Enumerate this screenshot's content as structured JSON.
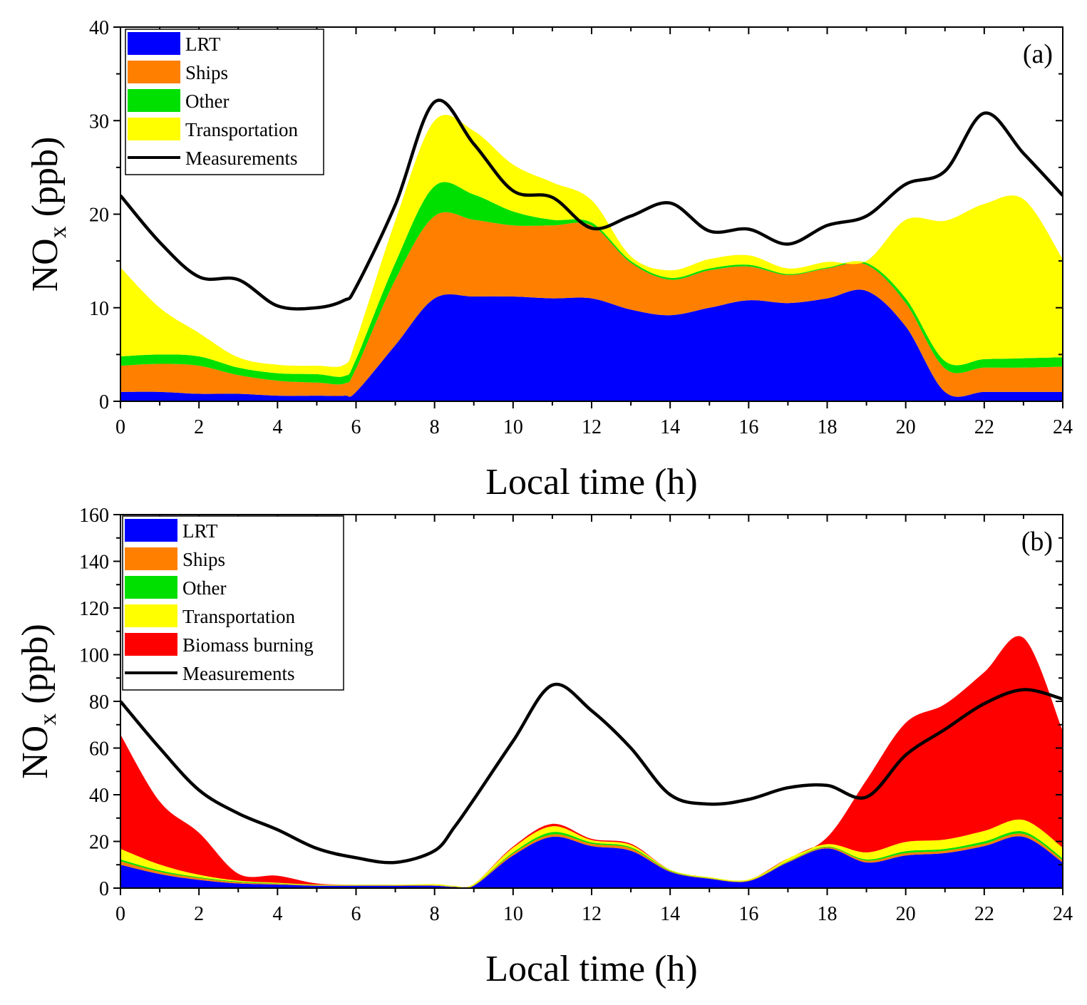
{
  "chart_data": [
    {
      "type": "area",
      "stacked": true,
      "panel_label": "(a)",
      "xlabel": "Local time (h)",
      "ylabel": "NO",
      "ylabel_sub": "x",
      "ylabel_unit": " (ppb)",
      "xlim": [
        0,
        24
      ],
      "ylim": [
        0,
        40
      ],
      "xticks": [
        0,
        2,
        4,
        6,
        8,
        10,
        12,
        14,
        16,
        18,
        20,
        22,
        24
      ],
      "yticks": [
        0,
        10,
        20,
        30,
        40
      ],
      "legend_position": "top-left",
      "x": [
        0,
        1,
        2,
        3,
        4,
        5,
        5.7,
        6,
        7,
        8,
        9,
        10,
        11,
        12,
        13,
        14,
        15,
        16,
        17,
        18,
        19,
        20,
        21,
        22,
        23,
        24
      ],
      "series": [
        {
          "name": "LRT",
          "color": "#0000ff",
          "values": [
            1,
            1,
            0.8,
            0.8,
            0.6,
            0.6,
            0.6,
            1,
            6,
            11,
            11.2,
            11.2,
            11,
            11,
            9.8,
            9.2,
            10,
            10.8,
            10.5,
            11,
            11.8,
            8,
            1,
            1,
            1,
            1
          ]
        },
        {
          "name": "Ships",
          "color": "#ff8000",
          "values": [
            2.8,
            3,
            3,
            2,
            1.6,
            1.4,
            1.3,
            2.5,
            7,
            8.8,
            8.2,
            7.6,
            7.8,
            7.8,
            5,
            3.8,
            4,
            3.6,
            3,
            3.2,
            2.8,
            2.5,
            2.5,
            2.6,
            2.6,
            2.7
          ]
        },
        {
          "name": "Other",
          "color": "#00e000",
          "values": [
            1,
            1,
            1,
            0.8,
            0.8,
            0.9,
            0.8,
            1,
            1.8,
            3.2,
            2.7,
            1.5,
            0.6,
            0.3,
            0.2,
            0.2,
            0.2,
            0.2,
            0.1,
            0.1,
            0.2,
            0.5,
            0.8,
            0.9,
            1,
            1
          ]
        },
        {
          "name": "Transportation",
          "color": "#ffff00",
          "values": [
            9.5,
            5,
            2.5,
            1.1,
            0.9,
            0.9,
            1.2,
            2,
            4.5,
            7,
            6.8,
            5,
            4,
            2.4,
            0.5,
            0.8,
            1,
            1,
            0.6,
            0.6,
            0.2,
            8.4,
            15,
            16.6,
            17,
            10.5
          ]
        }
      ],
      "measurements": {
        "name": "Measurements",
        "color": "#000000",
        "values": [
          22,
          17,
          13.3,
          13,
          10.2,
          10,
          10.8,
          12.2,
          21,
          32,
          27.5,
          22.5,
          21.8,
          18.5,
          19.8,
          21.2,
          18.2,
          18.4,
          16.8,
          18.8,
          19.8,
          23.2,
          24.6,
          30.8,
          26.5,
          22
        ]
      }
    },
    {
      "type": "area",
      "stacked": true,
      "panel_label": "(b)",
      "xlabel": "Local time (h)",
      "ylabel": "NO",
      "ylabel_sub": "x",
      "ylabel_unit": " (ppb)",
      "xlim": [
        0,
        24
      ],
      "ylim": [
        0,
        160
      ],
      "xticks": [
        0,
        2,
        4,
        6,
        8,
        10,
        12,
        14,
        16,
        18,
        20,
        22,
        24
      ],
      "yticks": [
        0,
        20,
        40,
        60,
        80,
        100,
        120,
        140,
        160
      ],
      "legend_position": "top-left",
      "x": [
        0,
        1,
        2,
        3,
        4,
        5,
        6,
        7,
        8,
        8.5,
        9,
        10,
        11,
        12,
        13,
        14,
        15,
        16,
        17,
        18,
        19,
        20,
        21,
        22,
        23,
        24
      ],
      "series": [
        {
          "name": "LRT",
          "color": "#0000ff",
          "values": [
            10,
            6,
            3.5,
            2,
            1.5,
            1,
            1,
            1,
            1,
            0.5,
            1,
            14,
            22,
            18,
            16,
            7,
            4,
            3,
            11,
            17,
            11,
            14,
            15,
            18,
            22,
            11
          ]
        },
        {
          "name": "Ships",
          "color": "#ff8000",
          "values": [
            1.5,
            1,
            0.8,
            0.5,
            0.3,
            0.2,
            0.2,
            0.2,
            0.2,
            0.1,
            0.2,
            0.8,
            1,
            1,
            1,
            0.3,
            0.2,
            0.2,
            0.3,
            0.5,
            0.8,
            1,
            1,
            1,
            1.2,
            1
          ]
        },
        {
          "name": "Other",
          "color": "#00e000",
          "values": [
            0.8,
            0.6,
            0.4,
            0.3,
            0.2,
            0.1,
            0.1,
            0.1,
            0.1,
            0.1,
            0.1,
            0.5,
            1,
            0.6,
            0.5,
            0.2,
            0.1,
            0.1,
            0.2,
            0.3,
            0.5,
            0.8,
            0.8,
            1,
            1,
            0.8
          ]
        },
        {
          "name": "Transportation",
          "color": "#ffff00",
          "values": [
            4.5,
            2.5,
            1,
            0.4,
            0.3,
            0.2,
            0.2,
            0.2,
            0.4,
            0.3,
            0.5,
            2,
            2.5,
            1,
            1,
            0.4,
            0.4,
            0.4,
            1.2,
            1,
            3,
            4,
            4,
            4.5,
            5,
            4.5
          ]
        },
        {
          "name": "Biomass burning",
          "color": "#ff0000",
          "values": [
            49,
            27,
            18,
            3,
            3,
            0.5,
            0,
            0,
            0,
            0,
            0,
            0.5,
            1,
            0.5,
            0.5,
            0,
            0,
            0,
            0,
            3,
            31,
            51,
            58,
            68,
            78,
            50
          ]
        }
      ],
      "measurements": {
        "name": "Measurements",
        "color": "#000000",
        "values": [
          80,
          60,
          42,
          32,
          25,
          17,
          13,
          11,
          16,
          26,
          38,
          63,
          87,
          76,
          60,
          40,
          36,
          38,
          43,
          44,
          39,
          57,
          68,
          79,
          85,
          81
        ]
      }
    }
  ]
}
